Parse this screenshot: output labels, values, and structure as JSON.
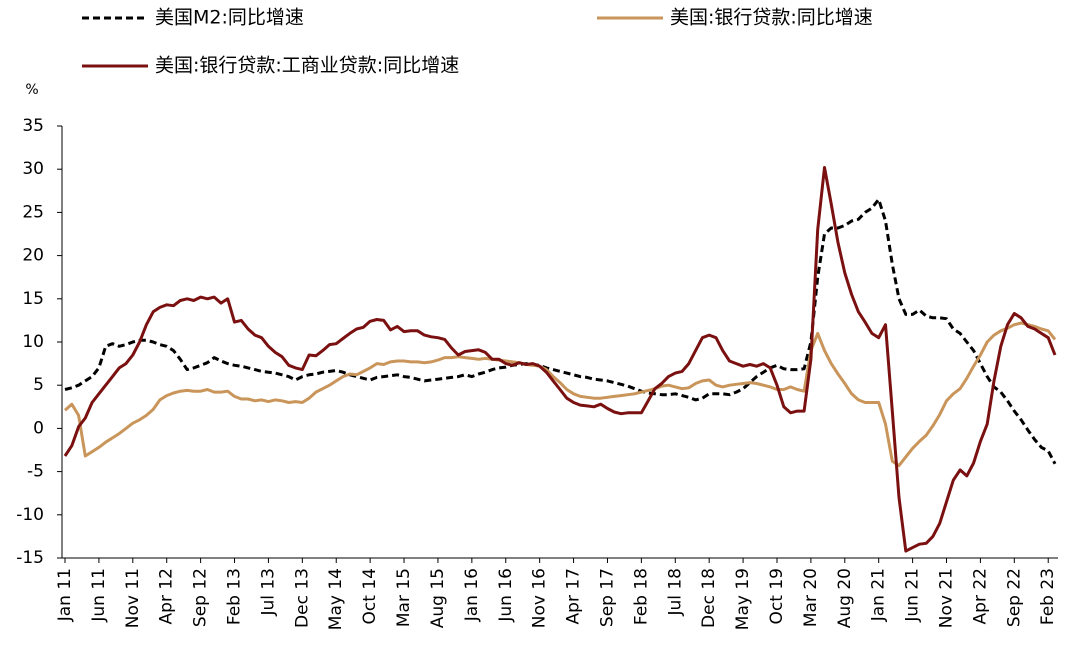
{
  "chart_data": {
    "type": "line",
    "y_label": "%",
    "ylim": [
      -15,
      35
    ],
    "yticks": [
      -15,
      -10,
      -5,
      0,
      5,
      10,
      15,
      20,
      25,
      30,
      35
    ],
    "categories": [
      "Jan 11",
      null,
      null,
      null,
      null,
      "Jun 11",
      null,
      null,
      null,
      null,
      "Nov 11",
      null,
      null,
      null,
      null,
      "Apr 12",
      null,
      null,
      null,
      null,
      "Sep 12",
      null,
      null,
      null,
      null,
      "Feb 13",
      null,
      null,
      null,
      null,
      "Jul 13",
      null,
      null,
      null,
      null,
      "Dec 13",
      null,
      null,
      null,
      null,
      "May 14",
      null,
      null,
      null,
      null,
      "Oct 14",
      null,
      null,
      null,
      null,
      "Mar 15",
      null,
      null,
      null,
      null,
      "Aug 15",
      null,
      null,
      null,
      null,
      "Jan 16",
      null,
      null,
      null,
      null,
      "Jun 16",
      null,
      null,
      null,
      null,
      "Nov 16",
      null,
      null,
      null,
      null,
      "Apr 17",
      null,
      null,
      null,
      null,
      "Sep 17",
      null,
      null,
      null,
      null,
      "Feb 18",
      null,
      null,
      null,
      null,
      "Jul 18",
      null,
      null,
      null,
      null,
      "Dec 18",
      null,
      null,
      null,
      null,
      "May 19",
      null,
      null,
      null,
      null,
      "Oct 19",
      null,
      null,
      null,
      null,
      "Mar 20",
      null,
      null,
      null,
      null,
      "Aug 20",
      null,
      null,
      null,
      null,
      "Jan 21",
      null,
      null,
      null,
      null,
      "Jun 21",
      null,
      null,
      null,
      null,
      "Nov 21",
      null,
      null,
      null,
      null,
      "Apr 22",
      null,
      null,
      null,
      null,
      "Sep 22",
      null,
      null,
      null,
      null,
      "Feb 23",
      null
    ],
    "series": [
      {
        "name": "美国M2:同比增速",
        "color": "#000000",
        "dash": true,
        "values": [
          4.5,
          4.7,
          5.0,
          5.5,
          6.0,
          7.0,
          9.5,
          9.8,
          9.5,
          9.7,
          10.0,
          10.2,
          10.2,
          10.0,
          9.7,
          9.5,
          9.0,
          8.0,
          6.8,
          7.0,
          7.3,
          7.6,
          8.2,
          7.8,
          7.5,
          7.3,
          7.2,
          7.0,
          6.8,
          6.6,
          6.5,
          6.4,
          6.2,
          6.0,
          5.6,
          6.0,
          6.2,
          6.3,
          6.5,
          6.6,
          6.7,
          6.5,
          6.2,
          6.0,
          5.8,
          5.6,
          5.9,
          6.0,
          6.1,
          6.2,
          6.0,
          5.9,
          5.7,
          5.5,
          5.6,
          5.7,
          5.8,
          5.9,
          6.0,
          6.2,
          6.0,
          6.3,
          6.5,
          6.8,
          7.0,
          7.1,
          7.3,
          7.4,
          7.5,
          7.4,
          7.3,
          7.0,
          6.8,
          6.6,
          6.4,
          6.2,
          6.0,
          5.9,
          5.7,
          5.6,
          5.5,
          5.3,
          5.1,
          4.9,
          4.6,
          4.3,
          4.1,
          4.0,
          3.9,
          3.9,
          4.0,
          3.8,
          3.6,
          3.3,
          3.5,
          4.0,
          4.0,
          4.0,
          3.9,
          4.2,
          4.6,
          5.3,
          6.0,
          6.5,
          7.0,
          7.3,
          6.9,
          6.8,
          6.8,
          6.9,
          10.0,
          17.5,
          22.5,
          23.2,
          23.2,
          23.5,
          24.0,
          24.2,
          25.0,
          25.5,
          26.5,
          24.0,
          19.0,
          15.0,
          13.2,
          13.2,
          13.7,
          13.0,
          12.8,
          12.8,
          12.7,
          11.5,
          11.0,
          10.0,
          9.0,
          7.5,
          6.0,
          4.8,
          4.2,
          3.2,
          2.0,
          1.0,
          -0.2,
          -1.3,
          -2.2,
          -2.6,
          -4.1
        ]
      },
      {
        "name": "美国:银行贷款:同比增速",
        "color": "#c9955a",
        "dash": false,
        "values": [
          2.1,
          2.8,
          1.5,
          -3.2,
          -2.7,
          -2.2,
          -1.6,
          -1.1,
          -0.6,
          0.0,
          0.6,
          1.0,
          1.5,
          2.2,
          3.3,
          3.8,
          4.1,
          4.3,
          4.4,
          4.3,
          4.3,
          4.5,
          4.2,
          4.2,
          4.3,
          3.7,
          3.4,
          3.4,
          3.2,
          3.3,
          3.1,
          3.3,
          3.2,
          3.0,
          3.1,
          3.0,
          3.5,
          4.2,
          4.6,
          5.0,
          5.5,
          6.0,
          6.3,
          6.2,
          6.6,
          7.0,
          7.5,
          7.4,
          7.7,
          7.8,
          7.8,
          7.7,
          7.7,
          7.6,
          7.7,
          7.9,
          8.2,
          8.2,
          8.3,
          8.2,
          8.1,
          8.0,
          8.1,
          8.0,
          7.9,
          7.8,
          7.7,
          7.6,
          7.4,
          7.3,
          7.2,
          6.8,
          6.0,
          5.3,
          4.5,
          4.0,
          3.7,
          3.6,
          3.5,
          3.5,
          3.6,
          3.7,
          3.8,
          3.9,
          4.0,
          4.2,
          4.4,
          4.6,
          4.9,
          5.0,
          4.8,
          4.6,
          4.7,
          5.2,
          5.5,
          5.6,
          5.0,
          4.8,
          5.0,
          5.1,
          5.2,
          5.3,
          5.2,
          5.0,
          4.8,
          4.5,
          4.5,
          4.8,
          4.5,
          4.3,
          9.0,
          11.0,
          9.0,
          7.5,
          6.3,
          5.2,
          4.0,
          3.3,
          3.0,
          3.0,
          3.0,
          0.5,
          -3.8,
          -4.3,
          -3.3,
          -2.3,
          -1.5,
          -0.8,
          0.3,
          1.6,
          3.2,
          4.0,
          4.6,
          5.8,
          7.2,
          8.5,
          10.0,
          10.8,
          11.3,
          11.6,
          12.0,
          12.2,
          12.0,
          11.8,
          11.5,
          11.3,
          10.3
        ]
      },
      {
        "name": "美国:银行贷款:工商业贷款:同比增速",
        "color": "#7a1010",
        "dash": false,
        "values": [
          -3.2,
          -2.0,
          0.2,
          1.2,
          3.0,
          4.0,
          5.0,
          6.0,
          7.0,
          7.5,
          8.5,
          10.0,
          12.0,
          13.5,
          14.0,
          14.3,
          14.2,
          14.8,
          15.0,
          14.8,
          15.2,
          15.0,
          15.2,
          14.5,
          15.0,
          12.3,
          12.5,
          11.5,
          10.8,
          10.5,
          9.5,
          8.8,
          8.3,
          7.3,
          7.0,
          6.8,
          8.5,
          8.4,
          9.0,
          9.7,
          9.8,
          10.4,
          11.0,
          11.5,
          11.7,
          12.4,
          12.6,
          12.5,
          11.4,
          11.8,
          11.2,
          11.3,
          11.3,
          10.8,
          10.6,
          10.5,
          10.3,
          9.3,
          8.5,
          8.9,
          9.0,
          9.1,
          8.8,
          8.0,
          8.0,
          7.5,
          7.3,
          7.6,
          7.4,
          7.5,
          7.2,
          6.5,
          5.5,
          4.5,
          3.5,
          3.0,
          2.7,
          2.6,
          2.5,
          2.8,
          2.3,
          1.9,
          1.7,
          1.8,
          1.8,
          1.8,
          3.2,
          4.6,
          5.2,
          6.0,
          6.4,
          6.6,
          7.5,
          9.0,
          10.5,
          10.8,
          10.5,
          9.0,
          7.8,
          7.5,
          7.2,
          7.4,
          7.2,
          7.5,
          7.0,
          5.0,
          2.5,
          1.8,
          2.0,
          2.0,
          8.0,
          23.0,
          30.2,
          26.0,
          21.5,
          18.0,
          15.5,
          13.5,
          12.3,
          11.0,
          10.5,
          12.0,
          2.0,
          -8.0,
          -14.2,
          -13.8,
          -13.4,
          -13.3,
          -12.5,
          -11.0,
          -8.5,
          -6.0,
          -4.8,
          -5.5,
          -4.0,
          -1.5,
          0.5,
          5.5,
          9.5,
          12.0,
          13.3,
          12.8,
          11.8,
          11.5,
          11.0,
          10.5,
          8.5
        ]
      }
    ]
  }
}
